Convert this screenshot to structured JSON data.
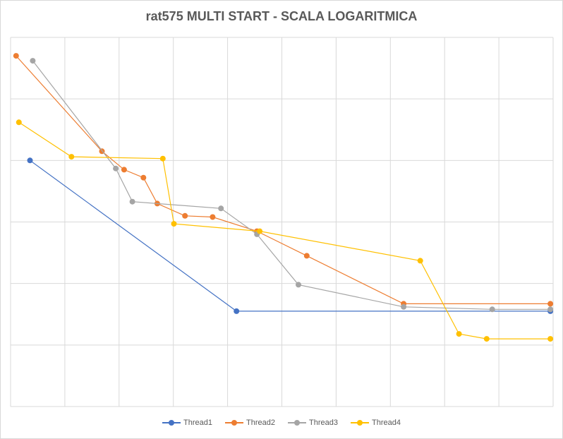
{
  "chart_data": {
    "type": "line",
    "title": "rat575 MULTI START - SCALA LOGARITMICA",
    "xlabel": "",
    "ylabel": "",
    "xlim": [
      0,
      9.8
    ],
    "ylim": [
      0,
      6
    ],
    "grid": true,
    "tick_labels_visible": false,
    "legend_position": "bottom",
    "series": [
      {
        "name": "Thread1",
        "color": "#4472C4",
        "x": [
          0.35,
          4.08,
          9.75
        ],
        "y": [
          4.0,
          1.55,
          1.55
        ]
      },
      {
        "name": "Thread2",
        "color": "#ED7D31",
        "x": [
          0.1,
          1.65,
          2.05,
          2.4,
          2.65,
          3.15,
          3.65,
          4.45,
          5.35,
          7.1,
          9.75
        ],
        "y": [
          5.7,
          4.15,
          3.85,
          3.72,
          3.3,
          3.1,
          3.08,
          2.85,
          2.45,
          1.67,
          1.67
        ]
      },
      {
        "name": "Thread3",
        "color": "#A5A5A5",
        "x": [
          0.4,
          1.9,
          2.2,
          3.8,
          4.45,
          5.2,
          7.1,
          8.7,
          9.75
        ],
        "y": [
          5.62,
          3.87,
          3.33,
          3.22,
          2.8,
          1.98,
          1.62,
          1.58,
          1.58
        ]
      },
      {
        "name": "Thread4",
        "color": "#FFC000",
        "x": [
          0.15,
          1.1,
          2.75,
          2.95,
          4.5,
          7.4,
          8.1,
          8.6,
          9.75
        ],
        "y": [
          4.62,
          4.06,
          4.03,
          2.97,
          2.85,
          2.37,
          1.18,
          1.1,
          1.1
        ]
      }
    ]
  }
}
